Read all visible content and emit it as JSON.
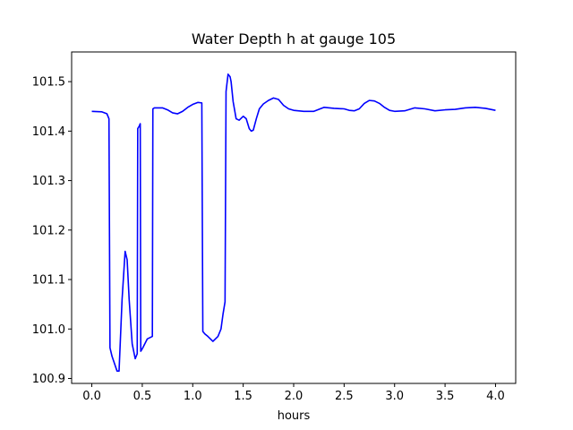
{
  "chart_data": {
    "type": "line",
    "title": "Water Depth h at gauge 105",
    "xlabel": "hours",
    "ylabel": "",
    "xlim": [
      -0.2,
      4.2
    ],
    "ylim": [
      100.89,
      101.56
    ],
    "grid": false,
    "x_ticks": [
      0.0,
      0.5,
      1.0,
      1.5,
      2.0,
      2.5,
      3.0,
      3.5,
      4.0
    ],
    "x_tick_labels": [
      "0.0",
      "0.5",
      "1.0",
      "1.5",
      "2.0",
      "2.5",
      "3.0",
      "3.5",
      "4.0"
    ],
    "y_ticks": [
      100.9,
      101.0,
      101.1,
      101.2,
      101.3,
      101.4,
      101.5
    ],
    "y_tick_labels": [
      "100.9",
      "101.0",
      "101.1",
      "101.2",
      "101.3",
      "101.4",
      "101.5"
    ],
    "series": [
      {
        "color": "#0000ff",
        "x": [
          0.0,
          0.1,
          0.15,
          0.17,
          0.18,
          0.2,
          0.25,
          0.27,
          0.3,
          0.33,
          0.35,
          0.37,
          0.4,
          0.43,
          0.45,
          0.455,
          0.47,
          0.48,
          0.485,
          0.5,
          0.55,
          0.6,
          0.605,
          0.62,
          0.7,
          0.75,
          0.8,
          0.85,
          0.9,
          0.95,
          1.0,
          1.05,
          1.09,
          1.1,
          1.12,
          1.15,
          1.2,
          1.25,
          1.28,
          1.3,
          1.32,
          1.33,
          1.35,
          1.37,
          1.38,
          1.4,
          1.43,
          1.46,
          1.5,
          1.53,
          1.56,
          1.58,
          1.6,
          1.63,
          1.66,
          1.7,
          1.75,
          1.8,
          1.85,
          1.9,
          1.95,
          2.0,
          2.1,
          2.2,
          2.3,
          2.4,
          2.5,
          2.55,
          2.6,
          2.65,
          2.7,
          2.75,
          2.8,
          2.85,
          2.9,
          2.95,
          3.0,
          3.1,
          3.2,
          3.3,
          3.4,
          3.5,
          3.6,
          3.7,
          3.8,
          3.9,
          4.0
        ],
        "y": [
          101.44,
          101.439,
          101.435,
          101.425,
          100.962,
          100.945,
          100.915,
          100.915,
          101.06,
          101.157,
          101.14,
          101.06,
          100.97,
          100.94,
          100.95,
          101.405,
          101.41,
          101.415,
          100.955,
          100.96,
          100.98,
          100.985,
          101.445,
          101.447,
          101.447,
          101.443,
          101.437,
          101.435,
          101.44,
          101.448,
          101.454,
          101.458,
          101.457,
          100.995,
          100.99,
          100.985,
          100.975,
          100.985,
          101.0,
          101.03,
          101.055,
          101.48,
          101.515,
          101.51,
          101.5,
          101.46,
          101.425,
          101.422,
          101.43,
          101.425,
          101.405,
          101.4,
          101.402,
          101.425,
          101.445,
          101.455,
          101.462,
          101.467,
          101.464,
          101.452,
          101.445,
          101.442,
          101.44,
          101.44,
          101.448,
          101.446,
          101.445,
          101.442,
          101.441,
          101.445,
          101.456,
          101.462,
          101.461,
          101.456,
          101.448,
          101.442,
          101.44,
          101.441,
          101.447,
          101.445,
          101.441,
          101.443,
          101.444,
          101.447,
          101.448,
          101.446,
          101.442
        ]
      }
    ]
  }
}
